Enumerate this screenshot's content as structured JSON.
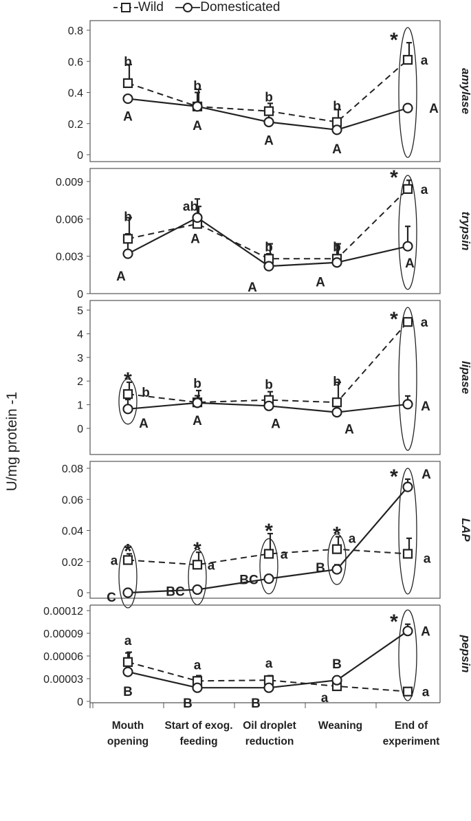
{
  "legend": {
    "wild": "Wild",
    "domesticated": "Domesticated"
  },
  "ylabel": "U/mg protein -1",
  "categories": [
    "Mouth opening",
    "Start of exog. feeding",
    "Oil droplet reduction",
    "Weaning",
    "End of experiment"
  ],
  "colors": {
    "line": "#222222",
    "frame": "#555555"
  },
  "chart_data": [
    {
      "type": "line",
      "title": "amylase",
      "ylim": [
        0,
        0.8
      ],
      "tick_labels": [
        "0",
        "0.2",
        "0.4",
        "0.6",
        "0.8"
      ],
      "categories": [
        "Mouth opening",
        "Start of exog. feeding",
        "Oil droplet reduction",
        "Weaning",
        "End of experiment"
      ],
      "series": [
        {
          "name": "Wild",
          "marker": "square",
          "dash": true,
          "values": [
            0.46,
            0.31,
            0.28,
            0.21,
            0.61
          ],
          "err": [
            0.12,
            0.11,
            0.05,
            0.08,
            0.11
          ]
        },
        {
          "name": "Domesticated",
          "marker": "circle",
          "dash": false,
          "values": [
            0.36,
            0.31,
            0.21,
            0.16,
            0.3
          ],
          "err": [
            0,
            0.09,
            0.06,
            0.03,
            0
          ]
        }
      ],
      "wild_letters": [
        "b",
        "b",
        "b",
        "b",
        "a"
      ],
      "dom_letters": [
        "A",
        "A",
        "A",
        "A",
        "A"
      ],
      "stars": [
        4
      ],
      "ellipses": [
        4
      ]
    },
    {
      "type": "line",
      "title": "trypsin",
      "ylim": [
        0,
        0.009
      ],
      "tick_labels": [
        "0",
        "0.003",
        "0.006",
        "0.009"
      ],
      "categories": [
        "Mouth opening",
        "Start of exog. feeding",
        "Oil droplet reduction",
        "Weaning",
        "End of experiment"
      ],
      "series": [
        {
          "name": "Wild",
          "marker": "square",
          "dash": true,
          "values": [
            0.0044,
            0.0056,
            0.0028,
            0.0028,
            0.0084
          ],
          "err": [
            0.0017,
            0.0014,
            0.0012,
            0.0012,
            0.0007
          ]
        },
        {
          "name": "Domesticated",
          "marker": "circle",
          "dash": false,
          "values": [
            0.0032,
            0.0061,
            0.0022,
            0.0025,
            0.0038
          ],
          "err": [
            0.0016,
            0.0015,
            0.001,
            0.0015,
            0.0016
          ]
        }
      ],
      "wild_letters": [
        "b",
        "ab",
        "b",
        "b",
        "a"
      ],
      "dom_letters": [
        "A",
        "A",
        "A",
        "A",
        "A"
      ],
      "stars": [
        4
      ],
      "ellipses": [
        4
      ]
    },
    {
      "type": "line",
      "title": "lipase",
      "ylim": [
        0,
        5
      ],
      "tick_labels": [
        "0",
        "1",
        "2",
        "3",
        "4",
        "5"
      ],
      "categories": [
        "Mouth opening",
        "Start of exog. feeding",
        "Oil droplet reduction",
        "Weaning",
        "End of experiment"
      ],
      "series": [
        {
          "name": "Wild",
          "marker": "square",
          "dash": true,
          "values": [
            1.45,
            1.1,
            1.2,
            1.1,
            4.5
          ],
          "err": [
            0.5,
            0.5,
            0.35,
            0.85,
            0
          ]
        },
        {
          "name": "Domesticated",
          "marker": "circle",
          "dash": false,
          "values": [
            0.82,
            1.08,
            0.95,
            0.68,
            1.02
          ],
          "err": [
            0.4,
            0.3,
            0.3,
            0.25,
            0.35
          ]
        }
      ],
      "wild_letters": [
        "b",
        "b",
        "b",
        "b",
        "a"
      ],
      "dom_letters": [
        "A",
        "A",
        "A",
        "A",
        "A"
      ],
      "stars": [
        0,
        4
      ],
      "ellipses": [
        0,
        4
      ]
    },
    {
      "type": "line",
      "title": "LAP",
      "ylim": [
        0,
        0.08
      ],
      "tick_labels": [
        "0",
        "0.02",
        "0.04",
        "0.06",
        "0.08"
      ],
      "categories": [
        "Mouth opening",
        "Start of exog. feeding",
        "Oil droplet reduction",
        "Weaning",
        "End of experiment"
      ],
      "series": [
        {
          "name": "Wild",
          "marker": "square",
          "dash": true,
          "values": [
            0.021,
            0.018,
            0.025,
            0.028,
            0.025
          ],
          "err": [
            0.004,
            0.008,
            0.013,
            0.008,
            0.01
          ]
        },
        {
          "name": "Domesticated",
          "marker": "circle",
          "dash": false,
          "values": [
            0,
            0.002,
            0.009,
            0.015,
            0.068
          ],
          "err": [
            0,
            0,
            0.002,
            0.003,
            0.005
          ]
        }
      ],
      "wild_letters": [
        "a",
        "a",
        "a",
        "a",
        "a"
      ],
      "dom_letters": [
        "C",
        "BC",
        "BC",
        "B",
        "A"
      ],
      "stars": [
        0,
        1,
        2,
        3,
        4
      ],
      "ellipses": [
        0,
        1,
        2,
        3,
        4
      ]
    },
    {
      "type": "line",
      "title": "pepsin",
      "ylim": [
        0,
        0.00012
      ],
      "tick_labels": [
        "0",
        "0.00003",
        "0.00006",
        "0.00009",
        "0.00012"
      ],
      "categories": [
        "Mouth opening",
        "Start of exog. feeding",
        "Oil droplet reduction",
        "Weaning",
        "End of experiment"
      ],
      "series": [
        {
          "name": "Wild",
          "marker": "square",
          "dash": true,
          "values": [
            5.2e-05,
            2.7e-05,
            2.8e-05,
            2e-05,
            1.3e-05
          ],
          "err": [
            1.3e-05,
            7e-06,
            6e-06,
            5e-06,
            0
          ]
        },
        {
          "name": "Domesticated",
          "marker": "circle",
          "dash": false,
          "values": [
            3.9e-05,
            1.8e-05,
            1.8e-05,
            2.8e-05,
            9.3e-05
          ],
          "err": [
            2.5e-05,
            8e-06,
            4e-06,
            0,
            9e-06
          ]
        }
      ],
      "wild_letters": [
        "a",
        "a",
        "a",
        "a",
        "a"
      ],
      "dom_letters": [
        "B",
        "B",
        "B",
        "B",
        "A"
      ],
      "stars": [
        4
      ],
      "ellipses": [
        4
      ]
    }
  ]
}
